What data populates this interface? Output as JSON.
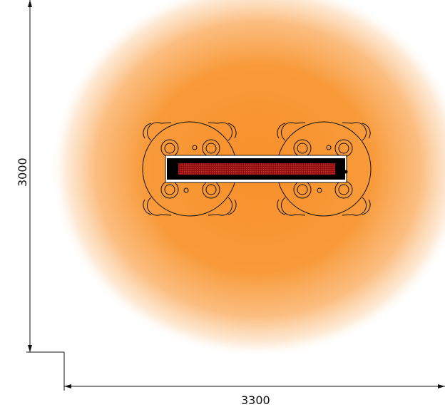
{
  "dimensions": {
    "width_label": "3300",
    "height_label": "3000"
  },
  "colors": {
    "heat_core": "#f7902a",
    "heat_edge": "#ffffff",
    "line": "#111111",
    "heater_body": "#000000",
    "heater_element": "#b31a1a"
  },
  "diagram": {
    "tables": 2,
    "chairs_per_table": 4,
    "heater": "infrared-heater"
  }
}
